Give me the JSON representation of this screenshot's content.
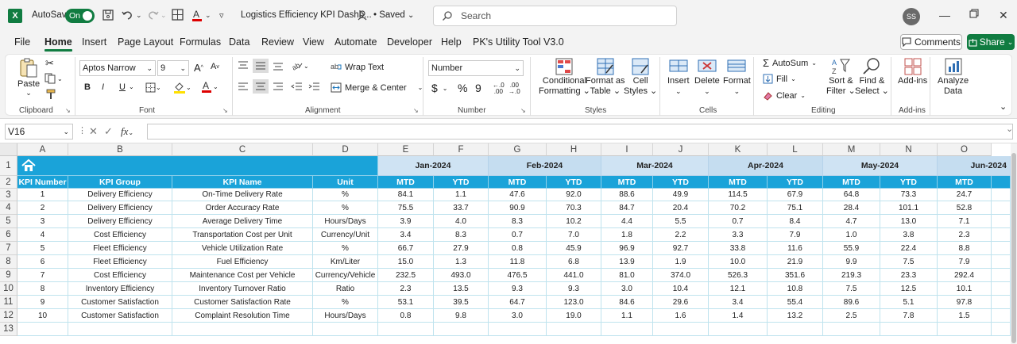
{
  "titlebar": {
    "app_logo": "X",
    "autosave_label": "AutoSave",
    "autosave_state": "On",
    "doc_title": "Logistics Efficiency KPI Dashb...",
    "saved_status": "• Saved",
    "search_placeholder": "Search",
    "user_initials": "SS"
  },
  "menu": {
    "items": [
      "File",
      "Home",
      "Insert",
      "Page Layout",
      "Formulas",
      "Data",
      "Review",
      "View",
      "Automate",
      "Developer",
      "Help",
      "PK's Utility Tool V3.0"
    ],
    "active": "Home",
    "comments_label": "Comments",
    "share_label": "Share"
  },
  "ribbon": {
    "clipboard": {
      "paste": "Paste",
      "label": "Clipboard"
    },
    "font": {
      "name": "Aptos Narrow",
      "size": "9",
      "bold": "B",
      "italic": "I",
      "underline": "U",
      "label": "Font"
    },
    "alignment": {
      "wrap_text": "Wrap Text",
      "merge_center": "Merge & Center",
      "label": "Alignment"
    },
    "number": {
      "format": "Number",
      "currency": "$",
      "percent": "%",
      "comma": "9",
      "label": "Number"
    },
    "styles": {
      "conditional_1": "Conditional",
      "conditional_2": "Formatting",
      "format_table_1": "Format as",
      "format_table_2": "Table",
      "cell_styles_1": "Cell",
      "cell_styles_2": "Styles",
      "label": "Styles"
    },
    "cells": {
      "insert": "Insert",
      "delete": "Delete",
      "format": "Format",
      "label": "Cells"
    },
    "editing": {
      "autosum": "AutoSum",
      "fill": "Fill",
      "clear": "Clear",
      "sort_1": "Sort &",
      "sort_2": "Filter",
      "find_1": "Find &",
      "find_2": "Select",
      "label": "Editing"
    },
    "addins": {
      "addins": "Add-ins",
      "label": "Add-ins"
    },
    "analyze": {
      "line1": "Analyze",
      "line2": "Data"
    }
  },
  "formula_bar": {
    "name_box": "V16",
    "fx": "fx",
    "content": ""
  },
  "sheet": {
    "column_letters": [
      "A",
      "B",
      "C",
      "D",
      "E",
      "F",
      "G",
      "H",
      "I",
      "J",
      "K",
      "L",
      "M",
      "N",
      "O"
    ],
    "row_numbers": [
      "1",
      "2",
      "3",
      "4",
      "5",
      "6",
      "7",
      "8",
      "9",
      "10",
      "11",
      "12",
      "13"
    ],
    "months": [
      "Jan-2024",
      "Feb-2024",
      "Mar-2024",
      "Apr-2024",
      "May-2024",
      "Jun-2024"
    ],
    "headers": [
      "KPI Number",
      "KPI Group",
      "KPI Name",
      "Unit",
      "MTD",
      "YTD",
      "MTD",
      "YTD",
      "MTD",
      "YTD",
      "MTD",
      "YTD",
      "MTD",
      "YTD",
      "MTD"
    ],
    "rows": [
      [
        "1",
        "Delivery Efficiency",
        "On-Time Delivery Rate",
        "%",
        "84.1",
        "1.1",
        "47.6",
        "92.0",
        "88.6",
        "49.9",
        "114.5",
        "67.9",
        "64.8",
        "73.3",
        "24.7"
      ],
      [
        "2",
        "Delivery Efficiency",
        "Order Accuracy Rate",
        "%",
        "75.5",
        "33.7",
        "90.9",
        "70.3",
        "84.7",
        "20.4",
        "70.2",
        "75.1",
        "28.4",
        "101.1",
        "52.8"
      ],
      [
        "3",
        "Delivery Efficiency",
        "Average Delivery Time",
        "Hours/Days",
        "3.9",
        "4.0",
        "8.3",
        "10.2",
        "4.4",
        "5.5",
        "0.7",
        "8.4",
        "4.7",
        "13.0",
        "7.1"
      ],
      [
        "4",
        "Cost Efficiency",
        "Transportation Cost per Unit",
        "Currency/Unit",
        "3.4",
        "8.3",
        "0.7",
        "7.0",
        "1.8",
        "2.2",
        "3.3",
        "7.9",
        "1.0",
        "3.8",
        "2.3"
      ],
      [
        "5",
        "Fleet Efficiency",
        "Vehicle Utilization Rate",
        "%",
        "66.7",
        "27.9",
        "0.8",
        "45.9",
        "96.9",
        "92.7",
        "33.8",
        "11.6",
        "55.9",
        "22.4",
        "8.8"
      ],
      [
        "6",
        "Fleet Efficiency",
        "Fuel Efficiency",
        "Km/Liter",
        "15.0",
        "1.3",
        "11.8",
        "6.8",
        "13.9",
        "1.9",
        "10.0",
        "21.9",
        "9.9",
        "7.5",
        "7.9"
      ],
      [
        "7",
        "Cost Efficiency",
        "Maintenance Cost per Vehicle",
        "Currency/Vehicle",
        "232.5",
        "493.0",
        "476.5",
        "441.0",
        "81.0",
        "374.0",
        "526.3",
        "351.6",
        "219.3",
        "23.3",
        "292.4"
      ],
      [
        "8",
        "Inventory Efficiency",
        "Inventory Turnover Ratio",
        "Ratio",
        "2.3",
        "13.5",
        "9.3",
        "9.3",
        "3.0",
        "10.4",
        "12.1",
        "10.8",
        "7.5",
        "12.5",
        "10.1"
      ],
      [
        "9",
        "Customer Satisfaction",
        "Customer Satisfaction Rate",
        "%",
        "53.1",
        "39.5",
        "64.7",
        "123.0",
        "84.6",
        "29.6",
        "3.4",
        "55.4",
        "89.6",
        "5.1",
        "97.8"
      ],
      [
        "10",
        "Customer Satisfaction",
        "Complaint Resolution Time",
        "Hours/Days",
        "0.8",
        "9.8",
        "3.0",
        "19.0",
        "1.1",
        "1.6",
        "1.4",
        "13.2",
        "2.5",
        "7.8",
        "1.5"
      ]
    ]
  },
  "colors": {
    "accent": "#107c41",
    "header_blue": "#1aa3d9",
    "month_header": "#cfe3f3",
    "grid_line": "#bfe3ee"
  }
}
